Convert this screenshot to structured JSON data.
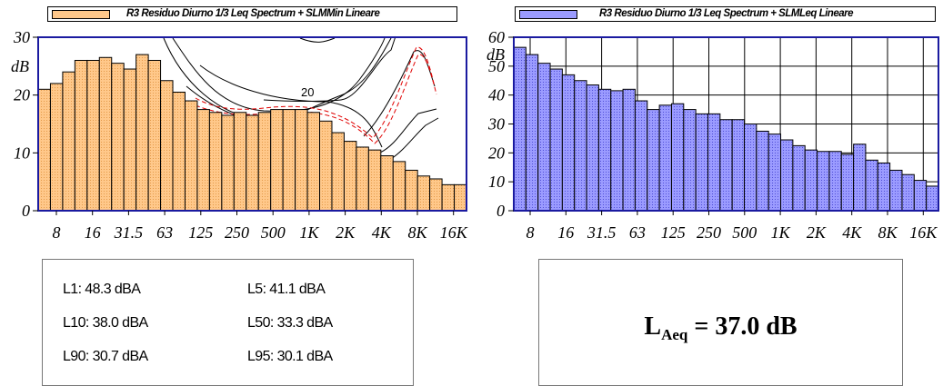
{
  "chart_data": [
    {
      "type": "bar",
      "legend": "R3 Residuo Diurno 1/3 Leq Spectrum + SLMMin Lineare",
      "ylabel": "dB",
      "ylim": [
        0,
        30
      ],
      "yticks": [
        0,
        10,
        20,
        30
      ],
      "xtick_labels": [
        "8",
        "16",
        "31.5",
        "63",
        "125",
        "250",
        "500",
        "1K",
        "2K",
        "4K",
        "8K",
        "16K"
      ],
      "grid": false,
      "values": [
        21,
        22,
        24,
        26,
        26,
        26.5,
        25.5,
        24.5,
        27,
        26,
        22.5,
        20.5,
        19,
        17.5,
        17,
        16.5,
        17,
        16.5,
        17,
        17.5,
        17.5,
        17.5,
        17,
        15.5,
        13.5,
        12,
        11,
        10.5,
        9.5,
        8.5,
        7,
        6,
        5.5,
        4.5,
        4.5
      ],
      "bar_color": "#FFC88A",
      "contour_label": "20"
    },
    {
      "type": "bar",
      "legend": "R3 Residuo Diurno 1/3 Leq Spectrum + SLMLeq Lineare",
      "ylabel": "dB",
      "ylim": [
        0,
        60
      ],
      "yticks": [
        0,
        10,
        20,
        30,
        40,
        50,
        60
      ],
      "xtick_labels": [
        "8",
        "16",
        "31.5",
        "63",
        "125",
        "250",
        "500",
        "1K",
        "2K",
        "4K",
        "8K",
        "16K"
      ],
      "grid": true,
      "values": [
        56.5,
        54,
        51,
        49,
        47,
        45,
        43.5,
        42,
        41.5,
        42,
        38,
        35,
        36.5,
        37,
        35,
        33.5,
        33.5,
        31.5,
        31.5,
        30,
        27.5,
        26.5,
        24.5,
        22.5,
        21,
        20.5,
        20.5,
        19.5,
        23,
        17.5,
        16.5,
        14,
        12.5,
        10.5,
        8.5
      ],
      "bar_color": "#9B9BFF"
    }
  ],
  "stats": {
    "l1": "L1: 48.3 dBA",
    "l5": "L5: 41.1 dBA",
    "l10": "L10: 38.0 dBA",
    "l50": "L50: 33.3 dBA",
    "l90": "L90: 30.7 dBA",
    "l95": "L95: 30.1 dBA"
  },
  "leq": {
    "prefix": "L",
    "sub": "Aeq",
    "value": " = 37.0 dB"
  }
}
